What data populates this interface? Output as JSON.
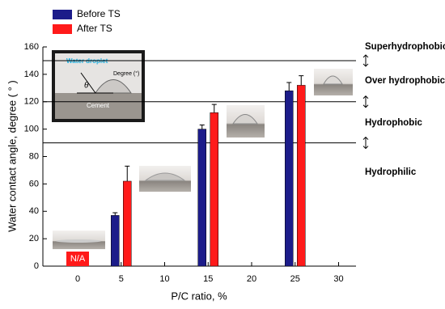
{
  "chart_data": {
    "type": "bar",
    "x_label": "P/C ratio, %",
    "y_label": "Water contact angle, degree ( ° )",
    "x": [
      0,
      5,
      15,
      25
    ],
    "series": [
      {
        "name": "Before TS",
        "color": "#1c1c8a",
        "values": [
          null,
          37,
          100,
          128
        ],
        "errors": [
          null,
          2,
          3,
          6
        ]
      },
      {
        "name": "After TS",
        "color": "#ff1a1a",
        "values": [
          null,
          62,
          112,
          132
        ],
        "errors": [
          null,
          11,
          6,
          7
        ]
      }
    ],
    "na_label": "N/A",
    "xlim": [
      -4,
      32
    ],
    "xticks": [
      0,
      5,
      10,
      15,
      20,
      25,
      30
    ],
    "ylim": [
      0,
      160
    ],
    "yticks": [
      0,
      20,
      40,
      60,
      80,
      100,
      120,
      140,
      160
    ],
    "legend": "upper left",
    "thresholds": [
      150,
      120,
      90
    ],
    "regions": [
      "Superhydrophobic",
      "Over hydrophobic",
      "Hydrophobic",
      "Hydrophilic"
    ],
    "inset": {
      "droplet": "Water droplet",
      "angle": "Degree (°)",
      "theta": "θ",
      "substrate": "Cement"
    }
  }
}
